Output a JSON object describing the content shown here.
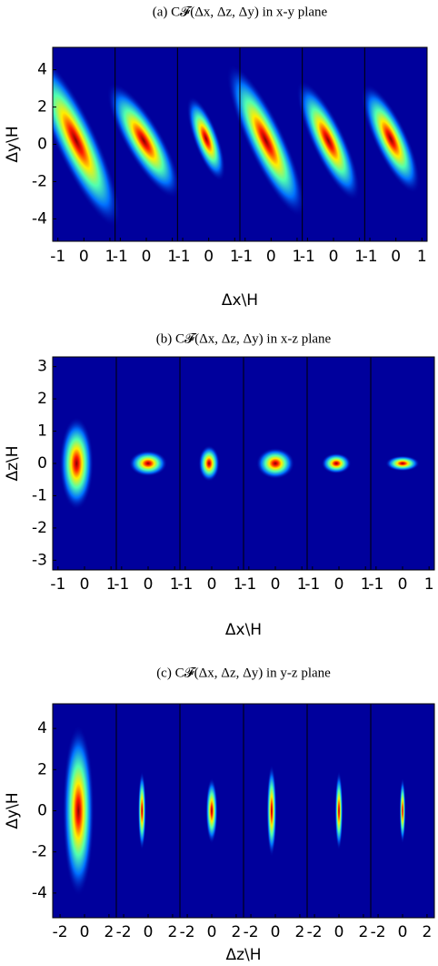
{
  "chart_data": [
    {
      "type": "heatmap",
      "title": "(a) C𝓕(Δx, Δz, Δy) in x-y plane",
      "xlabel": "Δx\\H",
      "ylabel": "Δy\\H",
      "xlim": [
        -1.2,
        1.2
      ],
      "ylim": [
        -5.2,
        5.2
      ],
      "xticks": [
        -1,
        0,
        1
      ],
      "yticks": [
        -4,
        -2,
        0,
        2,
        4
      ],
      "peaks": [
        {
          "x": -0.3,
          "y": 0.2,
          "rx": 0.5,
          "ry": 3.2,
          "tilt": -25
        },
        {
          "x": -0.1,
          "y": 0.2,
          "rx": 0.45,
          "ry": 2.2,
          "tilt": -30
        },
        {
          "x": -0.1,
          "y": 0.3,
          "rx": 0.3,
          "ry": 1.5,
          "tilt": -20
        },
        {
          "x": -0.2,
          "y": 0.2,
          "rx": 0.45,
          "ry": 2.8,
          "tilt": -25
        },
        {
          "x": -0.2,
          "y": 0.2,
          "rx": 0.4,
          "ry": 2.2,
          "tilt": -25
        },
        {
          "x": -0.2,
          "y": 0.3,
          "rx": 0.4,
          "ry": 2.0,
          "tilt": -25
        }
      ]
    },
    {
      "type": "heatmap",
      "title": "(b) C𝓕(Δx, Δz, Δy) in x-z plane",
      "xlabel": "Δx\\H",
      "ylabel": "Δz\\H",
      "xlim": [
        -1.2,
        1.2
      ],
      "ylim": [
        -3.3,
        3.3
      ],
      "xticks": [
        -1,
        0,
        1
      ],
      "yticks": [
        -3,
        -2,
        -1,
        0,
        1,
        2,
        3
      ],
      "peaks": [
        {
          "x": -0.3,
          "y": 0,
          "rx": 0.4,
          "ry": 0.9
        },
        {
          "x": 0,
          "y": 0,
          "rx": 0.45,
          "ry": 0.25
        },
        {
          "x": -0.1,
          "y": 0,
          "rx": 0.25,
          "ry": 0.35
        },
        {
          "x": 0,
          "y": 0,
          "rx": 0.45,
          "ry": 0.3
        },
        {
          "x": -0.1,
          "y": 0,
          "rx": 0.35,
          "ry": 0.2
        },
        {
          "x": 0,
          "y": 0,
          "rx": 0.4,
          "ry": 0.15
        }
      ]
    },
    {
      "type": "heatmap",
      "title": "(c) C𝓕(Δx, Δz, Δy) in y-z plane",
      "xlabel": "Δz\\H",
      "ylabel": "Δy\\H",
      "xlim": [
        -2.6,
        2.6
      ],
      "ylim": [
        -5.2,
        5.2
      ],
      "xticks": [
        -2,
        0,
        2
      ],
      "yticks": [
        -4,
        -2,
        0,
        2,
        4
      ],
      "peaks": [
        {
          "x": -0.5,
          "y": 0,
          "rx": 0.8,
          "ry": 2.6
        },
        {
          "x": -0.5,
          "y": 0,
          "rx": 0.2,
          "ry": 1.2
        },
        {
          "x": 0,
          "y": 0,
          "rx": 0.3,
          "ry": 1.0
        },
        {
          "x": -0.3,
          "y": 0,
          "rx": 0.25,
          "ry": 1.4
        },
        {
          "x": 0,
          "y": 0,
          "rx": 0.2,
          "ry": 1.2
        },
        {
          "x": 0,
          "y": 0,
          "rx": 0.15,
          "ry": 1.0
        }
      ]
    }
  ]
}
